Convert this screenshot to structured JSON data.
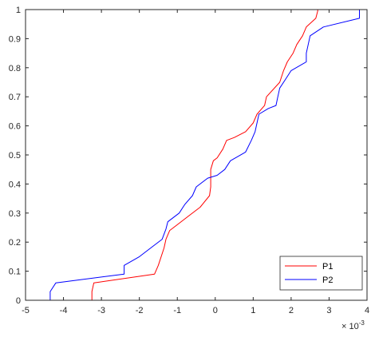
{
  "chart_data": {
    "type": "line",
    "title": "",
    "xlabel": "",
    "ylabel": "",
    "x_exponent_label": "× 10",
    "x_exponent_power": "-3",
    "xlim": [
      -5,
      4
    ],
    "ylim": [
      0,
      1
    ],
    "x_ticks": [
      -5,
      -4,
      -3,
      -2,
      -1,
      0,
      1,
      2,
      3,
      4
    ],
    "x_tick_labels": [
      "-5",
      "-4",
      "-3",
      "-2",
      "-1",
      "0",
      "1",
      "2",
      "3",
      "4"
    ],
    "y_ticks": [
      0,
      0.1,
      0.2,
      0.3,
      0.4,
      0.5,
      0.6,
      0.7,
      0.8,
      0.9,
      1
    ],
    "y_tick_labels": [
      "0",
      "0.1",
      "0.2",
      "0.3",
      "0.4",
      "0.5",
      "0.6",
      "0.7",
      "0.8",
      "0.9",
      "1"
    ],
    "grid": false,
    "legend_position": "bottom-right",
    "series": [
      {
        "name": "P1",
        "color": "#ff0000",
        "points": [
          [
            -3.25,
            0.0
          ],
          [
            -3.25,
            0.03
          ],
          [
            -3.2,
            0.06
          ],
          [
            -1.6,
            0.09
          ],
          [
            -1.5,
            0.12
          ],
          [
            -1.35,
            0.18
          ],
          [
            -1.3,
            0.21
          ],
          [
            -1.2,
            0.24
          ],
          [
            -1.0,
            0.26
          ],
          [
            -0.7,
            0.29
          ],
          [
            -0.4,
            0.32
          ],
          [
            -0.15,
            0.36
          ],
          [
            -0.12,
            0.39
          ],
          [
            -0.12,
            0.45
          ],
          [
            -0.05,
            0.48
          ],
          [
            0.05,
            0.49
          ],
          [
            0.2,
            0.52
          ],
          [
            0.3,
            0.55
          ],
          [
            0.5,
            0.56
          ],
          [
            0.8,
            0.58
          ],
          [
            1.0,
            0.61
          ],
          [
            1.1,
            0.64
          ],
          [
            1.3,
            0.67
          ],
          [
            1.35,
            0.7
          ],
          [
            1.7,
            0.75
          ],
          [
            1.8,
            0.79
          ],
          [
            1.9,
            0.82
          ],
          [
            2.05,
            0.85
          ],
          [
            2.15,
            0.88
          ],
          [
            2.3,
            0.91
          ],
          [
            2.4,
            0.94
          ],
          [
            2.65,
            0.97
          ],
          [
            2.7,
            0.995
          ],
          [
            2.7,
            1.0
          ]
        ]
      },
      {
        "name": "P2",
        "color": "#0000ff",
        "points": [
          [
            -4.35,
            0.0
          ],
          [
            -4.35,
            0.03
          ],
          [
            -4.2,
            0.06
          ],
          [
            -2.4,
            0.09
          ],
          [
            -2.4,
            0.12
          ],
          [
            -2.0,
            0.15
          ],
          [
            -1.7,
            0.18
          ],
          [
            -1.4,
            0.21
          ],
          [
            -1.3,
            0.245
          ],
          [
            -1.25,
            0.27
          ],
          [
            -0.95,
            0.3
          ],
          [
            -0.8,
            0.33
          ],
          [
            -0.6,
            0.36
          ],
          [
            -0.5,
            0.39
          ],
          [
            -0.2,
            0.42
          ],
          [
            0.05,
            0.43
          ],
          [
            0.25,
            0.45
          ],
          [
            0.4,
            0.48
          ],
          [
            0.8,
            0.51
          ],
          [
            0.95,
            0.55
          ],
          [
            1.05,
            0.58
          ],
          [
            1.1,
            0.61
          ],
          [
            1.15,
            0.64
          ],
          [
            1.4,
            0.66
          ],
          [
            1.6,
            0.67
          ],
          [
            1.65,
            0.7
          ],
          [
            1.7,
            0.73
          ],
          [
            1.85,
            0.76
          ],
          [
            2.0,
            0.79
          ],
          [
            2.4,
            0.82
          ],
          [
            2.4,
            0.85
          ],
          [
            2.45,
            0.88
          ],
          [
            2.5,
            0.91
          ],
          [
            2.85,
            0.94
          ],
          [
            3.8,
            0.97
          ],
          [
            3.8,
            1.0
          ]
        ]
      }
    ]
  }
}
